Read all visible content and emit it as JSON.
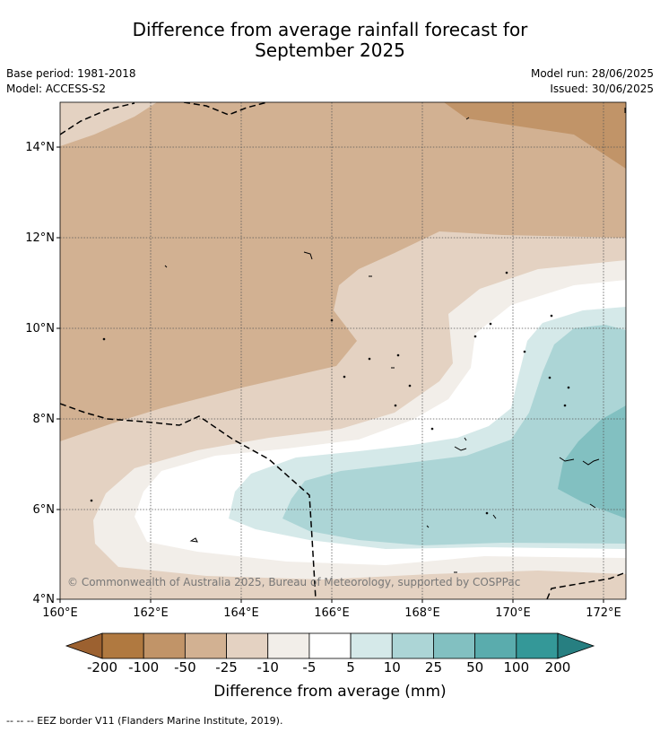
{
  "title": {
    "line1": "Difference from average rainfall forecast for",
    "line2": "September 2025"
  },
  "meta_left": {
    "base_period": "Base period: 1981-2018",
    "model": "Model: ACCESS-S2"
  },
  "meta_right": {
    "model_run": "Model run: 28/06/2025",
    "issued": "Issued: 30/06/2025"
  },
  "copyright": "© Commonwealth of Australia 2025, Bureau of Meteorology, supported by COSPPac",
  "axes": {
    "x_ticks": [
      "160°E",
      "162°E",
      "164°E",
      "166°E",
      "168°E",
      "170°E",
      "172°E"
    ],
    "y_ticks": [
      "14°N",
      "12°N",
      "10°N",
      "8°N",
      "6°N",
      "4°N"
    ]
  },
  "colorbar": {
    "labels": [
      "-200",
      "-100",
      "-50",
      "-25",
      "-10",
      "-5",
      "5",
      "10",
      "25",
      "50",
      "100",
      "200"
    ],
    "colors": [
      "#9c6130",
      "#b07940",
      "#c19468",
      "#d2b192",
      "#e4d2c2",
      "#f2eee9",
      "#ffffff",
      "#d5e9e9",
      "#acd5d6",
      "#82c0c1",
      "#5aacad",
      "#349898",
      "#277f81"
    ],
    "title": "Difference from average (mm)"
  },
  "footnote": "--  --  -- EEZ border V11 (Flanders Marine Institute, 2019).",
  "region_colors": {
    "minus50": "#d2b192",
    "minus100": "#c19468",
    "minus25": "#e4d2c2",
    "minus10": "#f2eee9",
    "zero": "#ffffff",
    "plus5": "#d5e9e9",
    "plus10": "#acd5d6",
    "plus25": "#82c0c1"
  }
}
